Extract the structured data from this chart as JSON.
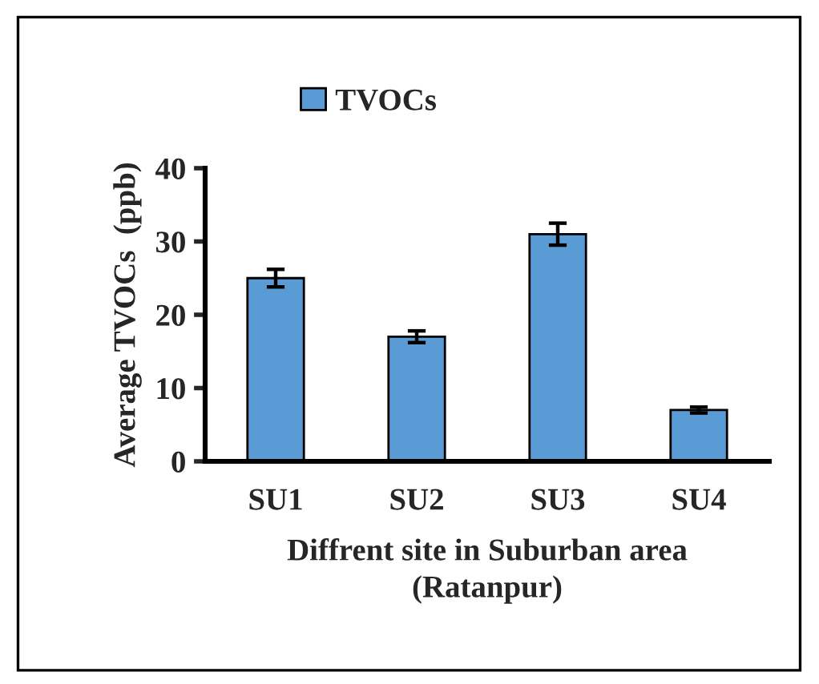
{
  "chart_data": {
    "type": "bar",
    "categories": [
      "SU1",
      "SU2",
      "SU3",
      "SU4"
    ],
    "series": [
      {
        "name": "TVOCs",
        "color": "#5b9bd5",
        "values": [
          25,
          17,
          31,
          7
        ],
        "errors": [
          1.2,
          0.8,
          1.5,
          0.4
        ]
      }
    ],
    "xlabel": "Diffrent site in Suburban area\n(Ratanpur)",
    "ylabel": "Average TVOCs  (ppb)",
    "ylim": [
      0,
      40
    ],
    "yticks": [
      0,
      10,
      20,
      30,
      40
    ],
    "grid": false,
    "legend": "top left"
  }
}
